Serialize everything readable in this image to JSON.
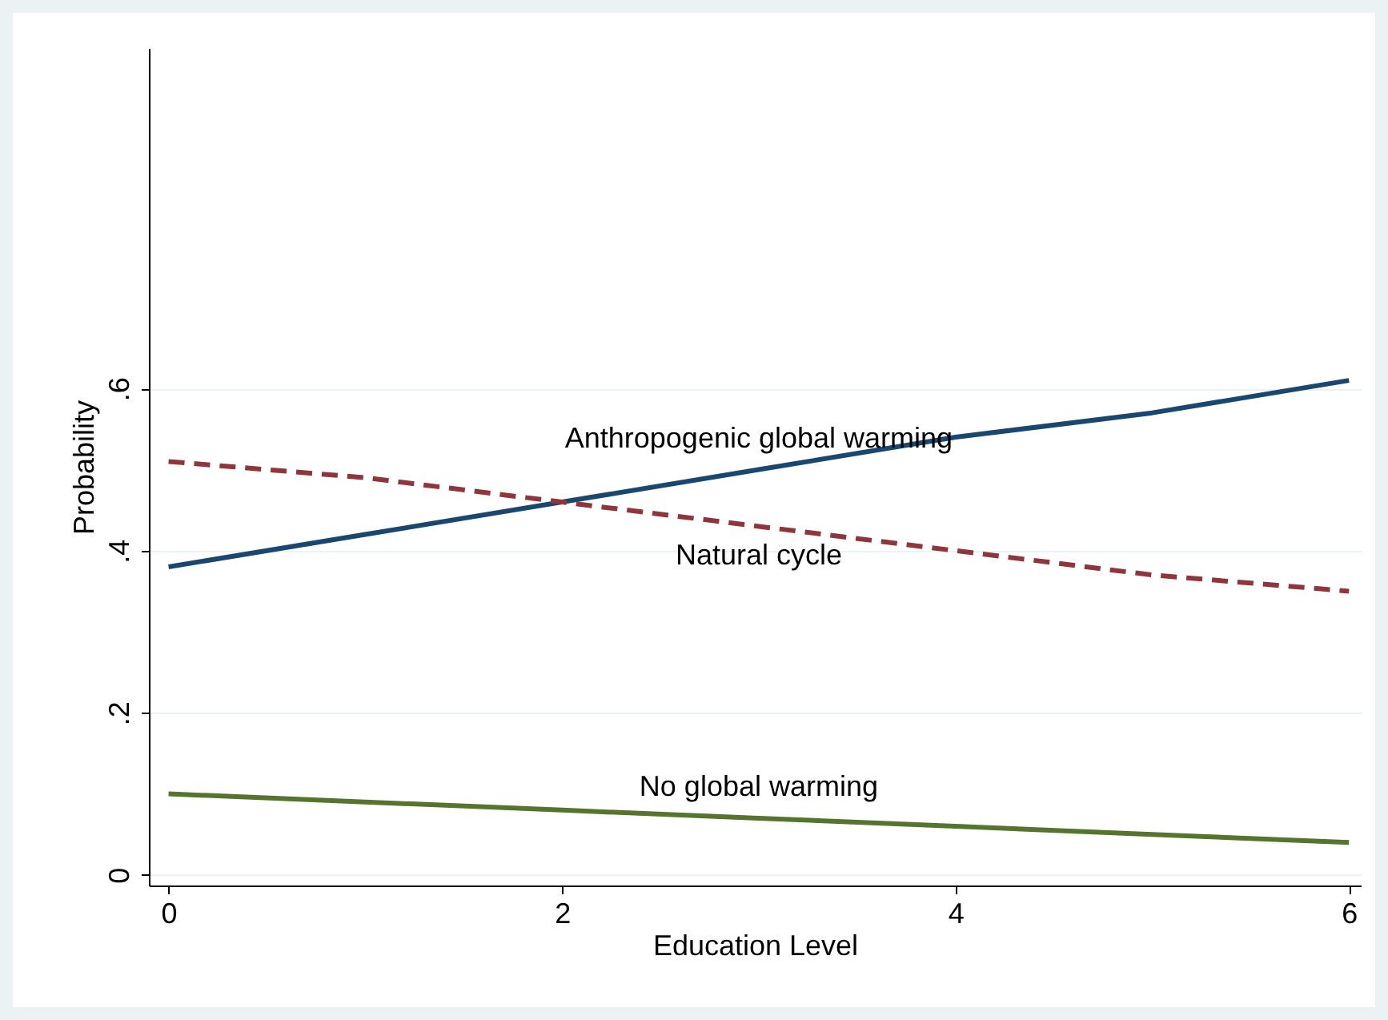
{
  "chart_data": {
    "type": "line",
    "xlabel": "Education Level",
    "ylabel": "Probability",
    "x": [
      0,
      1,
      2,
      3,
      4,
      5,
      6
    ],
    "series": [
      {
        "name": "Anthropogenic global warming",
        "color": "#1a476f",
        "line_style": "solid",
        "values": [
          0.38,
          0.42,
          0.46,
          0.5,
          0.54,
          0.57,
          0.61
        ]
      },
      {
        "name": "Natural cycle",
        "color": "#90353b",
        "line_style": "dashed",
        "values": [
          0.51,
          0.49,
          0.46,
          0.43,
          0.4,
          0.37,
          0.35
        ]
      },
      {
        "name": "No global warming",
        "color": "#55752f",
        "line_style": "solid",
        "values": [
          0.1,
          0.09,
          0.08,
          0.07,
          0.06,
          0.05,
          0.04
        ]
      }
    ],
    "xlim": [
      -0.1,
      6.06
    ],
    "ylim": [
      -0.013,
      1.02
    ],
    "xticks": [
      0,
      2,
      4,
      6
    ],
    "yticks": [
      {
        "value": 0,
        "label": "0"
      },
      {
        "value": 0.2,
        "label": ".2"
      },
      {
        "value": 0.4,
        "label": ".4"
      },
      {
        "value": 0.6,
        "label": ".6"
      }
    ],
    "grid": "y"
  }
}
